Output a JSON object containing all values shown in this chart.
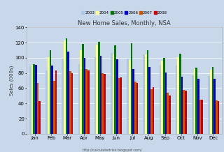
{
  "title": "New Home Sales, Monthly, NSA",
  "ylabel": "Sales (000s)",
  "footnote": "http://calculatedrisk.blogspot.com/",
  "background_color": "#c8d8ea",
  "plot_background": "#c8d8ea",
  "months": [
    "Jan",
    "Feb",
    "Mar",
    "Apr",
    "May",
    "Jun",
    "Jul",
    "Aug",
    "Sep",
    "Oct",
    "Nov",
    "Dec"
  ],
  "years": [
    "2003",
    "2004",
    "2005",
    "2006",
    "2007",
    "2008"
  ],
  "colors": [
    "#aec6e8",
    "#ffff99",
    "#007700",
    "#0000cc",
    "#cc5500",
    "#cc0000"
  ],
  "ylim": [
    0,
    140
  ],
  "yticks": [
    0,
    20,
    40,
    60,
    80,
    100,
    120,
    140
  ],
  "sales_data": {
    "2003": [
      90,
      83,
      99,
      92,
      101,
      106,
      99,
      104,
      91,
      90,
      77,
      76
    ],
    "2004": [
      91,
      101,
      123,
      110,
      117,
      104,
      97,
      104,
      96,
      101,
      85,
      84
    ],
    "2005": [
      92,
      110,
      126,
      118,
      121,
      116,
      119,
      110,
      100,
      105,
      87,
      88
    ],
    "2006": [
      91,
      90,
      108,
      100,
      103,
      98,
      85,
      88,
      81,
      75,
      72,
      72
    ],
    "2007": [
      67,
      70,
      82,
      85,
      80,
      73,
      69,
      59,
      54,
      58,
      45,
      44
    ],
    "2008": [
      43,
      83,
      80,
      83,
      79,
      74,
      67,
      61,
      50,
      57,
      45,
      43
    ]
  }
}
